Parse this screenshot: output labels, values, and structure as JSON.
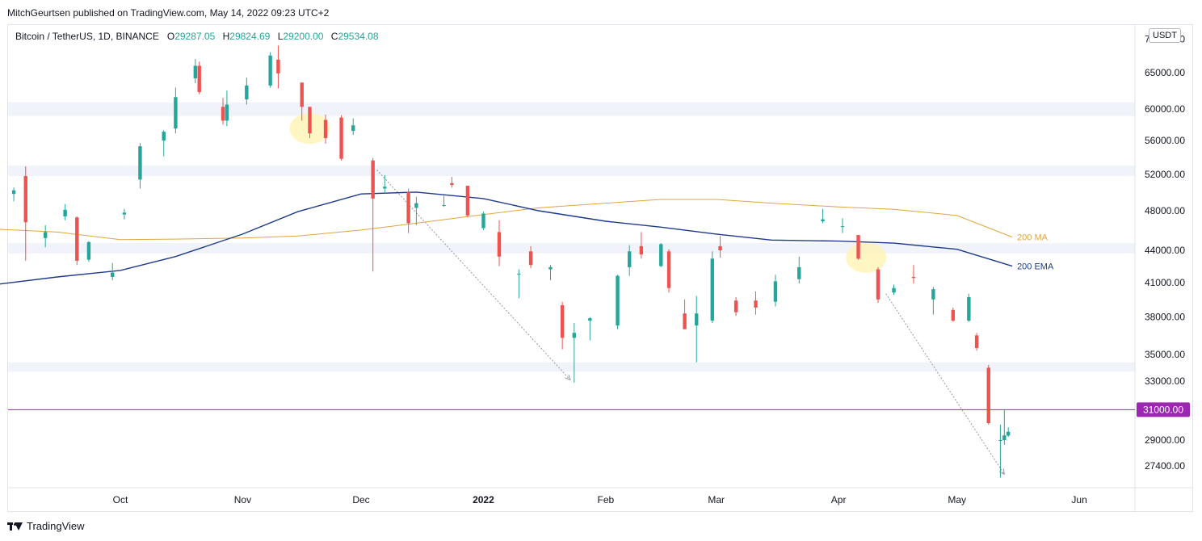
{
  "header": {
    "publisher": "MitchGeurtsen published on TradingView.com, May 14, 2022 09:23 UTC+2"
  },
  "legend": {
    "symbol": "Bitcoin / TetherUS, 1D, BINANCE",
    "o_label": "O",
    "o_value": "29287.05",
    "h_label": "H",
    "h_value": "29824.69",
    "l_label": "L",
    "l_value": "29200.00",
    "c_label": "C",
    "c_value": "29534.08"
  },
  "currency_badge": "USDT",
  "footer": {
    "brand": "TradingView"
  },
  "colors": {
    "up": "#26a69a",
    "down": "#ef5350",
    "ma": "#e0a540",
    "ema": "#1e3a8a",
    "price_line": "#9c27b0",
    "zone": "#f0f3fa",
    "highlight": "#fff3b0"
  },
  "chart_data": {
    "type": "candlestick",
    "symbol": "BTCUSDT",
    "timeframe": "1D",
    "y_scale": "log",
    "y_ticks": [
      "27400.00",
      "29000.00",
      "33000.00",
      "35000.00",
      "38000.00",
      "41000.00",
      "44000.00",
      "48000.00",
      "52000.00",
      "56000.00",
      "60000.00",
      "65000.00",
      "70000.00"
    ],
    "x_ticks": [
      {
        "label": "Oct",
        "date": "2021-10-01"
      },
      {
        "label": "Nov",
        "date": "2021-11-01"
      },
      {
        "label": "Dec",
        "date": "2021-12-01"
      },
      {
        "label": "2022",
        "date": "2022-01-01"
      },
      {
        "label": "Feb",
        "date": "2022-02-01"
      },
      {
        "label": "Mar",
        "date": "2022-03-01"
      },
      {
        "label": "Apr",
        "date": "2022-04-01"
      },
      {
        "label": "May",
        "date": "2022-05-01"
      },
      {
        "label": "Jun",
        "date": "2022-06-01"
      }
    ],
    "price_line": {
      "value": 31000,
      "label": "31000.00"
    },
    "zones": [
      [
        59100,
        60900
      ],
      [
        51800,
        53000
      ],
      [
        43700,
        44700
      ],
      [
        33700,
        34400
      ]
    ],
    "lines": [
      {
        "name": "200 MA",
        "label": "200 MA",
        "points": [
          {
            "date": "2021-08-30",
            "value": 46100
          },
          {
            "date": "2021-09-15",
            "value": 45800
          },
          {
            "date": "2021-10-01",
            "value": 45050
          },
          {
            "date": "2021-10-15",
            "value": 45100
          },
          {
            "date": "2021-11-01",
            "value": 45200
          },
          {
            "date": "2021-11-15",
            "value": 45400
          },
          {
            "date": "2021-12-01",
            "value": 46000
          },
          {
            "date": "2021-12-15",
            "value": 46700
          },
          {
            "date": "2022-01-01",
            "value": 47600
          },
          {
            "date": "2022-01-15",
            "value": 48300
          },
          {
            "date": "2022-02-01",
            "value": 48800
          },
          {
            "date": "2022-02-15",
            "value": 49200
          },
          {
            "date": "2022-03-01",
            "value": 49200
          },
          {
            "date": "2022-03-15",
            "value": 48800
          },
          {
            "date": "2022-04-01",
            "value": 48400
          },
          {
            "date": "2022-04-15",
            "value": 48150
          },
          {
            "date": "2022-05-01",
            "value": 47500
          },
          {
            "date": "2022-05-15",
            "value": 45300
          }
        ]
      },
      {
        "name": "200 EMA",
        "label": "200 EMA",
        "points": [
          {
            "date": "2021-08-30",
            "value": 40800
          },
          {
            "date": "2021-09-15",
            "value": 41500
          },
          {
            "date": "2021-10-01",
            "value": 42100
          },
          {
            "date": "2021-10-15",
            "value": 43400
          },
          {
            "date": "2021-11-01",
            "value": 45600
          },
          {
            "date": "2021-11-15",
            "value": 47900
          },
          {
            "date": "2021-12-01",
            "value": 49800
          },
          {
            "date": "2021-12-15",
            "value": 50000
          },
          {
            "date": "2022-01-01",
            "value": 49300
          },
          {
            "date": "2022-01-15",
            "value": 48000
          },
          {
            "date": "2022-02-01",
            "value": 46900
          },
          {
            "date": "2022-02-15",
            "value": 46300
          },
          {
            "date": "2022-03-01",
            "value": 45600
          },
          {
            "date": "2022-03-15",
            "value": 45000
          },
          {
            "date": "2022-04-01",
            "value": 44900
          },
          {
            "date": "2022-04-15",
            "value": 44700
          },
          {
            "date": "2022-05-01",
            "value": 44100
          },
          {
            "date": "2022-05-15",
            "value": 42500
          }
        ]
      }
    ],
    "arrows": [
      {
        "from": {
          "date": "2021-12-05",
          "value": 52500
        },
        "to": {
          "date": "2022-01-23",
          "value": 33100
        }
      },
      {
        "from": {
          "date": "2022-04-13",
          "value": 40000
        },
        "to": {
          "date": "2022-05-13",
          "value": 26900
        }
      }
    ],
    "highlights": [
      {
        "date": "2021-11-18",
        "value": 57500
      },
      {
        "date": "2022-04-08",
        "value": 43300
      }
    ],
    "candles": [
      {
        "date": "2021-08-30",
        "o": 48800,
        "h": 49500,
        "l": 46700,
        "c": 47000
      },
      {
        "date": "2021-09-04",
        "o": 49800,
        "h": 50500,
        "l": 49000,
        "c": 50200
      },
      {
        "date": "2021-09-07",
        "o": 51800,
        "h": 52900,
        "l": 43000,
        "c": 46800
      },
      {
        "date": "2021-09-12",
        "o": 45200,
        "h": 46500,
        "l": 44300,
        "c": 45800
      },
      {
        "date": "2021-09-17",
        "o": 47400,
        "h": 48700,
        "l": 47000,
        "c": 48100
      },
      {
        "date": "2021-09-20",
        "o": 47300,
        "h": 47400,
        "l": 42600,
        "c": 43000
      },
      {
        "date": "2021-09-23",
        "o": 43100,
        "h": 44900,
        "l": 42900,
        "c": 44800
      },
      {
        "date": "2021-09-29",
        "o": 41500,
        "h": 42800,
        "l": 41200,
        "c": 41900
      },
      {
        "date": "2021-10-02",
        "o": 47600,
        "h": 48200,
        "l": 47100,
        "c": 47800
      },
      {
        "date": "2021-10-06",
        "o": 51400,
        "h": 55700,
        "l": 50400,
        "c": 55300
      },
      {
        "date": "2021-10-12",
        "o": 56000,
        "h": 57300,
        "l": 54100,
        "c": 57100
      },
      {
        "date": "2021-10-15",
        "o": 57500,
        "h": 62900,
        "l": 56900,
        "c": 61600
      },
      {
        "date": "2021-10-20",
        "o": 64200,
        "h": 67000,
        "l": 63500,
        "c": 66000
      },
      {
        "date": "2021-10-21",
        "o": 66000,
        "h": 66600,
        "l": 62000,
        "c": 62300
      },
      {
        "date": "2021-10-27",
        "o": 60300,
        "h": 61500,
        "l": 58000,
        "c": 58500
      },
      {
        "date": "2021-10-28",
        "o": 58500,
        "h": 62500,
        "l": 57800,
        "c": 60600
      },
      {
        "date": "2021-11-02",
        "o": 61300,
        "h": 64300,
        "l": 60600,
        "c": 63200
      },
      {
        "date": "2021-11-08",
        "o": 63200,
        "h": 68000,
        "l": 62900,
        "c": 67500
      },
      {
        "date": "2021-11-10",
        "o": 66900,
        "h": 69000,
        "l": 62800,
        "c": 64900
      },
      {
        "date": "2021-11-16",
        "o": 63600,
        "h": 63600,
        "l": 58500,
        "c": 60300
      },
      {
        "date": "2021-11-18",
        "o": 60300,
        "h": 60300,
        "l": 56300,
        "c": 56900
      },
      {
        "date": "2021-11-22",
        "o": 58600,
        "h": 59300,
        "l": 55600,
        "c": 56300
      },
      {
        "date": "2021-11-26",
        "o": 58900,
        "h": 59200,
        "l": 53600,
        "c": 53800
      },
      {
        "date": "2021-11-29",
        "o": 57200,
        "h": 58800,
        "l": 56700,
        "c": 57900
      },
      {
        "date": "2021-12-04",
        "o": 53600,
        "h": 53900,
        "l": 42000,
        "c": 49300
      },
      {
        "date": "2021-12-07",
        "o": 50400,
        "h": 51900,
        "l": 50000,
        "c": 50600
      },
      {
        "date": "2021-12-13",
        "o": 50000,
        "h": 50400,
        "l": 45700,
        "c": 46700
      },
      {
        "date": "2021-12-15",
        "o": 48300,
        "h": 49500,
        "l": 46500,
        "c": 48800
      },
      {
        "date": "2021-12-22",
        "o": 48600,
        "h": 49600,
        "l": 48400,
        "c": 48600
      },
      {
        "date": "2021-12-24",
        "o": 51000,
        "h": 51700,
        "l": 50500,
        "c": 50800
      },
      {
        "date": "2021-12-28",
        "o": 50700,
        "h": 50700,
        "l": 47300,
        "c": 47500
      },
      {
        "date": "2022-01-01",
        "o": 46200,
        "h": 47900,
        "l": 46000,
        "c": 47700
      },
      {
        "date": "2022-01-05",
        "o": 45800,
        "h": 47000,
        "l": 42500,
        "c": 43400
      },
      {
        "date": "2022-01-10",
        "o": 41800,
        "h": 42200,
        "l": 39600,
        "c": 41800
      },
      {
        "date": "2022-01-13",
        "o": 43900,
        "h": 44400,
        "l": 42300,
        "c": 42600
      },
      {
        "date": "2022-01-18",
        "o": 42200,
        "h": 42600,
        "l": 41200,
        "c": 42400
      },
      {
        "date": "2022-01-21",
        "o": 39000,
        "h": 39300,
        "l": 35400,
        "c": 36300
      },
      {
        "date": "2022-01-24",
        "o": 36300,
        "h": 37500,
        "l": 32900,
        "c": 36700
      },
      {
        "date": "2022-01-28",
        "o": 37700,
        "h": 38000,
        "l": 36100,
        "c": 37900
      },
      {
        "date": "2022-02-04",
        "o": 37300,
        "h": 41700,
        "l": 37000,
        "c": 41600
      },
      {
        "date": "2022-02-07",
        "o": 42400,
        "h": 44500,
        "l": 41600,
        "c": 43900
      },
      {
        "date": "2022-02-10",
        "o": 44400,
        "h": 45800,
        "l": 43200,
        "c": 43600
      },
      {
        "date": "2022-02-15",
        "o": 42500,
        "h": 44700,
        "l": 42400,
        "c": 44600
      },
      {
        "date": "2022-02-17",
        "o": 43900,
        "h": 44100,
        "l": 40100,
        "c": 40500
      },
      {
        "date": "2022-02-21",
        "o": 38300,
        "h": 39500,
        "l": 37000,
        "c": 37000
      },
      {
        "date": "2022-02-24",
        "o": 37300,
        "h": 39800,
        "l": 34400,
        "c": 38300
      },
      {
        "date": "2022-02-28",
        "o": 37700,
        "h": 43900,
        "l": 37500,
        "c": 43200
      },
      {
        "date": "2022-03-02",
        "o": 44400,
        "h": 45400,
        "l": 43300,
        "c": 44000
      },
      {
        "date": "2022-03-06",
        "o": 39400,
        "h": 39700,
        "l": 38100,
        "c": 38400
      },
      {
        "date": "2022-03-11",
        "o": 39400,
        "h": 40200,
        "l": 38200,
        "c": 38800
      },
      {
        "date": "2022-03-16",
        "o": 39300,
        "h": 41700,
        "l": 38900,
        "c": 41100
      },
      {
        "date": "2022-03-22",
        "o": 41300,
        "h": 43400,
        "l": 40900,
        "c": 42400
      },
      {
        "date": "2022-03-28",
        "o": 46900,
        "h": 48200,
        "l": 46700,
        "c": 47100
      },
      {
        "date": "2022-04-02",
        "o": 46400,
        "h": 47200,
        "l": 45700,
        "c": 46400
      },
      {
        "date": "2022-04-06",
        "o": 45500,
        "h": 45500,
        "l": 43100,
        "c": 43200
      },
      {
        "date": "2022-04-11",
        "o": 42200,
        "h": 42400,
        "l": 39200,
        "c": 39500
      },
      {
        "date": "2022-04-15",
        "o": 40100,
        "h": 40800,
        "l": 39900,
        "c": 40500
      },
      {
        "date": "2022-04-20",
        "o": 41500,
        "h": 42600,
        "l": 40900,
        "c": 41400
      },
      {
        "date": "2022-04-25",
        "o": 39500,
        "h": 40600,
        "l": 38200,
        "c": 40400
      },
      {
        "date": "2022-04-30",
        "o": 38600,
        "h": 38800,
        "l": 37600,
        "c": 37700
      },
      {
        "date": "2022-05-04",
        "o": 37700,
        "h": 40000,
        "l": 37600,
        "c": 39700
      },
      {
        "date": "2022-05-06",
        "o": 36500,
        "h": 36700,
        "l": 35300,
        "c": 35500
      },
      {
        "date": "2022-05-09",
        "o": 34000,
        "h": 34200,
        "l": 30000,
        "c": 30100
      },
      {
        "date": "2022-05-12",
        "o": 29000,
        "h": 30000,
        "l": 26700,
        "c": 29000
      },
      {
        "date": "2022-05-13",
        "o": 29000,
        "h": 31000,
        "l": 28700,
        "c": 29300
      },
      {
        "date": "2022-05-14",
        "o": 29287.05,
        "h": 29824.69,
        "l": 29200,
        "c": 29534.08
      }
    ]
  }
}
